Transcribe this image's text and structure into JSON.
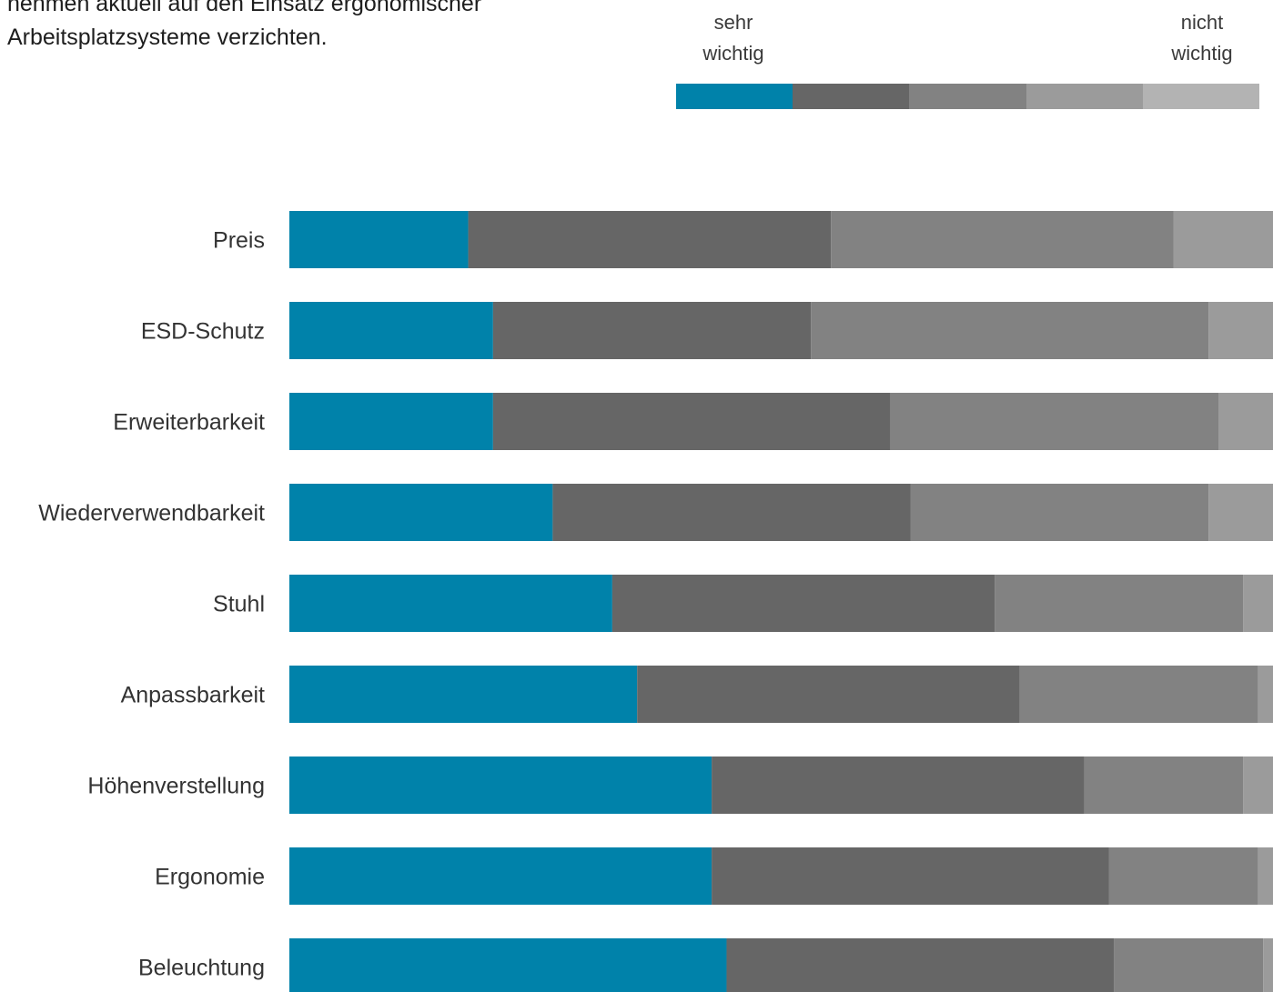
{
  "intro": {
    "line1": "nehmen aktuell auf den Einsatz ergonomischer",
    "line2": "Arbeitsplatzsysteme verzichten."
  },
  "legend": {
    "left_line1": "sehr",
    "left_line2": "wichtig",
    "right_line1": "nicht",
    "right_line2": "wichtig"
  },
  "colors": {
    "scale": [
      "#0082aa",
      "#666666",
      "#828282",
      "#9b9b9b",
      "#b3b3b3"
    ]
  },
  "chart_data": {
    "type": "bar",
    "orientation": "horizontal",
    "stacked": true,
    "categories": [
      "Preis",
      "ESD-Schutz",
      "Erweiterbarkeit",
      "Wiederverwendbarkeit",
      "Stuhl",
      "Anpassbarkeit",
      "Höhenverstellung",
      "Ergonomie",
      "Beleuchtung"
    ],
    "series": [
      {
        "values": [
          18,
          20.5,
          20.5,
          26.5,
          32.5,
          35,
          42.5,
          42.5,
          44
        ]
      },
      {
        "values": [
          36.5,
          32,
          40,
          36,
          38.5,
          38.5,
          37.5,
          40,
          39
        ]
      },
      {
        "values": [
          34.5,
          40,
          33,
          30,
          25,
          24,
          16,
          15,
          15
        ]
      },
      {
        "values": [
          11,
          8.5,
          6.5,
          7.5,
          4.5,
          2.5,
          4,
          2.5,
          2
        ]
      }
    ],
    "scale_steps": 5,
    "xlim": [
      0,
      100
    ],
    "legend_position": "top-right",
    "grid": false
  }
}
